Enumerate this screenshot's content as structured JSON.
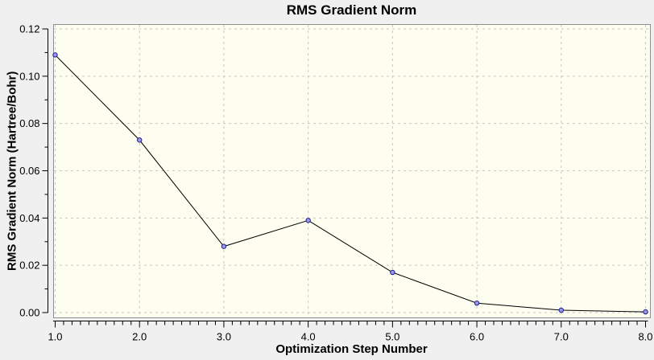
{
  "window": {
    "background_color": "#f0f0f0"
  },
  "chart_data": {
    "type": "line",
    "title": "RMS Gradient Norm",
    "xlabel": "Optimization Step Number",
    "ylabel": "RMS Gradient Norm (Hartree/Bohr)",
    "x": [
      1,
      2,
      3,
      4,
      5,
      6,
      7,
      8
    ],
    "y": [
      0.109,
      0.073,
      0.028,
      0.039,
      0.017,
      0.004,
      0.001,
      0.0003
    ],
    "xlim": [
      1.0,
      8.0
    ],
    "ylim": [
      0.0,
      0.12
    ],
    "x_major_ticks": [
      1,
      2,
      3,
      4,
      5,
      6,
      7,
      8
    ],
    "x_tick_labels": [
      "1.0",
      "2.0",
      "3.0",
      "4.0",
      "5.0",
      "6.0",
      "7.0",
      "8.0"
    ],
    "x_minor_step": 0.1,
    "y_major_ticks": [
      0,
      0.02,
      0.04,
      0.06,
      0.08,
      0.1,
      0.12
    ],
    "y_tick_labels": [
      "0.00",
      "0.02",
      "0.04",
      "0.06",
      "0.08",
      "0.10",
      "0.12"
    ],
    "y_minor_step": 0.01,
    "grid": "dashed",
    "legend": "none",
    "marker": "circle",
    "colors": {
      "plot_background": "#fdfdf0",
      "window_background": "#f0f0f0",
      "grid": "#c8c8c2",
      "frame": "#8f8f8f",
      "axis": "#000000",
      "line": "#000000",
      "marker_fill": "#9a9ae8",
      "marker_stroke": "#1c1c8f",
      "text": "#000000"
    }
  }
}
